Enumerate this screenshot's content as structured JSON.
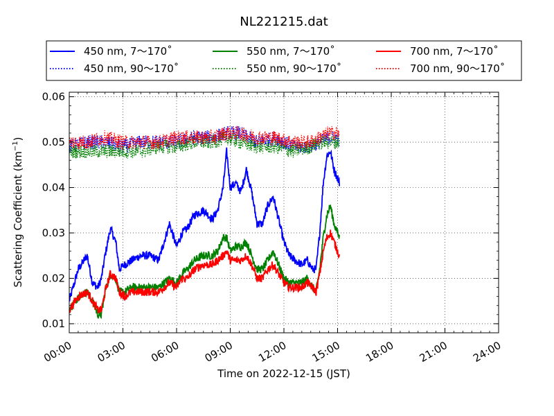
{
  "chart_data": {
    "type": "line",
    "title": "NL221215.dat",
    "xlabel": "Time on 2022-12-15 (JST)",
    "ylabel": "Scattering Coefficient (km",
    "ylabel_sup": "−1",
    "ylabel_close": ")",
    "xlim": [
      0,
      24
    ],
    "ylim": [
      0.008,
      0.061
    ],
    "x_ticks": [
      0,
      3,
      6,
      9,
      12,
      15,
      18,
      21,
      24
    ],
    "x_tick_labels": [
      "00:00",
      "03:00",
      "06:00",
      "09:00",
      "12:00",
      "15:00",
      "18:00",
      "21:00",
      "24:00"
    ],
    "y_ticks": [
      0.01,
      0.02,
      0.03,
      0.04,
      0.05,
      0.06
    ],
    "y_tick_labels": [
      "0.01",
      "0.02",
      "0.03",
      "0.04",
      "0.05",
      "0.06"
    ],
    "grid": true,
    "legend_position": "top-center, above plot",
    "series": [
      {
        "name": "450 nm, 7～170˚",
        "color": "#0000ff",
        "dash": "solid",
        "x": [
          0,
          0.5,
          1.0,
          1.3,
          1.6,
          1.8,
          2.0,
          2.3,
          2.6,
          2.8,
          3.1,
          3.5,
          4.0,
          4.5,
          5.0,
          5.3,
          5.6,
          6.0,
          6.3,
          6.6,
          7.0,
          7.5,
          8.0,
          8.3,
          8.6,
          8.8,
          9.0,
          9.3,
          9.6,
          9.9,
          10.2,
          10.5,
          10.8,
          11.1,
          11.4,
          11.7,
          12.0,
          12.3,
          12.6,
          13.0,
          13.3,
          13.6,
          13.8,
          14.0,
          14.2,
          14.4,
          14.6,
          14.8,
          15.0,
          15.1
        ],
        "y": [
          0.015,
          0.022,
          0.025,
          0.019,
          0.018,
          0.02,
          0.025,
          0.031,
          0.028,
          0.022,
          0.023,
          0.024,
          0.025,
          0.025,
          0.024,
          0.028,
          0.032,
          0.027,
          0.03,
          0.031,
          0.034,
          0.035,
          0.033,
          0.035,
          0.04,
          0.048,
          0.04,
          0.041,
          0.039,
          0.044,
          0.039,
          0.032,
          0.032,
          0.036,
          0.038,
          0.033,
          0.028,
          0.025,
          0.024,
          0.023,
          0.024,
          0.022,
          0.022,
          0.03,
          0.041,
          0.047,
          0.048,
          0.044,
          0.042,
          0.041
        ]
      },
      {
        "name": "550 nm, 7～170˚",
        "color": "#008000",
        "dash": "solid",
        "x": [
          0,
          0.5,
          1.0,
          1.3,
          1.6,
          1.8,
          2.0,
          2.3,
          2.6,
          2.8,
          3.1,
          3.5,
          4.0,
          4.5,
          5.0,
          5.3,
          5.6,
          6.0,
          6.3,
          6.6,
          7.0,
          7.5,
          8.0,
          8.3,
          8.6,
          8.8,
          9.0,
          9.3,
          9.6,
          9.9,
          10.2,
          10.5,
          10.8,
          11.1,
          11.4,
          11.7,
          12.0,
          12.3,
          12.6,
          13.0,
          13.3,
          13.6,
          13.8,
          14.0,
          14.2,
          14.4,
          14.6,
          14.8,
          15.0,
          15.1
        ],
        "y": [
          0.013,
          0.016,
          0.017,
          0.015,
          0.012,
          0.012,
          0.017,
          0.021,
          0.02,
          0.017,
          0.017,
          0.018,
          0.018,
          0.018,
          0.018,
          0.019,
          0.02,
          0.019,
          0.021,
          0.022,
          0.024,
          0.025,
          0.025,
          0.026,
          0.029,
          0.029,
          0.026,
          0.027,
          0.027,
          0.028,
          0.025,
          0.022,
          0.022,
          0.024,
          0.026,
          0.023,
          0.02,
          0.019,
          0.019,
          0.019,
          0.02,
          0.018,
          0.017,
          0.022,
          0.029,
          0.034,
          0.036,
          0.032,
          0.03,
          0.029
        ]
      },
      {
        "name": "700 nm, 7～170˚",
        "color": "#ff0000",
        "dash": "solid",
        "x": [
          0,
          0.5,
          1.0,
          1.3,
          1.6,
          1.8,
          2.0,
          2.3,
          2.6,
          2.8,
          3.1,
          3.5,
          4.0,
          4.5,
          5.0,
          5.3,
          5.6,
          6.0,
          6.3,
          6.6,
          7.0,
          7.5,
          8.0,
          8.3,
          8.6,
          8.8,
          9.0,
          9.3,
          9.6,
          9.9,
          10.2,
          10.5,
          10.8,
          11.1,
          11.4,
          11.7,
          12.0,
          12.3,
          12.6,
          13.0,
          13.3,
          13.6,
          13.8,
          14.0,
          14.2,
          14.4,
          14.6,
          14.8,
          15.0,
          15.1
        ],
        "y": [
          0.013,
          0.016,
          0.017,
          0.015,
          0.013,
          0.013,
          0.017,
          0.021,
          0.02,
          0.017,
          0.016,
          0.017,
          0.017,
          0.017,
          0.017,
          0.018,
          0.019,
          0.018,
          0.02,
          0.02,
          0.022,
          0.023,
          0.023,
          0.024,
          0.025,
          0.026,
          0.024,
          0.024,
          0.024,
          0.025,
          0.023,
          0.02,
          0.02,
          0.022,
          0.023,
          0.021,
          0.019,
          0.018,
          0.018,
          0.018,
          0.019,
          0.018,
          0.017,
          0.021,
          0.026,
          0.029,
          0.03,
          0.028,
          0.026,
          0.025
        ]
      },
      {
        "name": "450 nm, 90～170˚",
        "color": "#0000ff",
        "dash": "dotted",
        "x": [
          0,
          1.0,
          2.0,
          3.0,
          4.0,
          5.0,
          6.0,
          7.0,
          8.0,
          8.8,
          9.5,
          10.5,
          11.5,
          12.5,
          13.5,
          14.0,
          14.5,
          15.0,
          15.1
        ],
        "y": [
          0.049,
          0.05,
          0.05,
          0.049,
          0.05,
          0.05,
          0.05,
          0.051,
          0.051,
          0.052,
          0.052,
          0.05,
          0.051,
          0.049,
          0.049,
          0.05,
          0.051,
          0.051,
          0.05
        ]
      },
      {
        "name": "550 nm, 90～170˚",
        "color": "#008000",
        "dash": "dotted",
        "x": [
          0,
          1.0,
          2.0,
          3.0,
          4.0,
          5.0,
          6.0,
          7.0,
          8.0,
          8.8,
          9.5,
          10.5,
          11.5,
          12.5,
          13.5,
          14.0,
          14.5,
          15.0,
          15.1
        ],
        "y": [
          0.048,
          0.048,
          0.048,
          0.048,
          0.048,
          0.049,
          0.049,
          0.05,
          0.05,
          0.051,
          0.05,
          0.049,
          0.049,
          0.048,
          0.049,
          0.05,
          0.05,
          0.05,
          0.05
        ]
      },
      {
        "name": "700 nm, 90～170˚",
        "color": "#ff0000",
        "dash": "dotted",
        "x": [
          0,
          1.0,
          2.0,
          3.0,
          4.0,
          5.0,
          6.0,
          7.0,
          8.0,
          8.8,
          9.5,
          10.5,
          11.5,
          12.5,
          13.5,
          14.0,
          14.5,
          15.0,
          15.1
        ],
        "y": [
          0.05,
          0.05,
          0.051,
          0.05,
          0.05,
          0.05,
          0.051,
          0.051,
          0.051,
          0.052,
          0.052,
          0.051,
          0.051,
          0.05,
          0.05,
          0.051,
          0.052,
          0.052,
          0.051
        ]
      }
    ],
    "legend_order": [
      0,
      1,
      2,
      3,
      4,
      5
    ]
  }
}
